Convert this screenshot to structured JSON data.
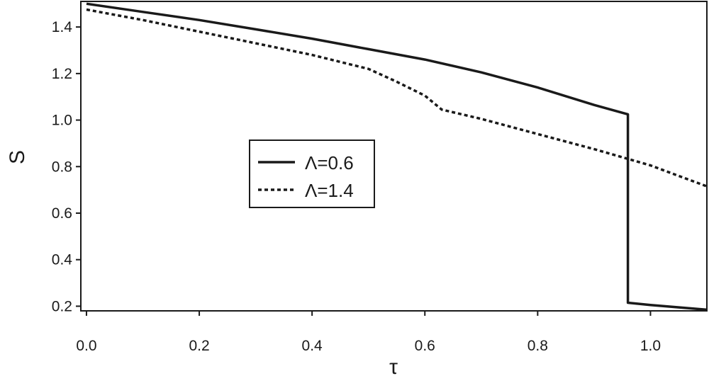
{
  "chart_data": {
    "type": "line",
    "xlabel": "τ",
    "ylabel": "S",
    "xlim": [
      -0.01,
      1.1
    ],
    "ylim": [
      0.18,
      1.51
    ],
    "xticks": [
      "0.0",
      "0.2",
      "0.4",
      "0.6",
      "0.8",
      "1.0"
    ],
    "yticks": [
      "0.2",
      "0.4",
      "0.6",
      "0.8",
      "1.0",
      "1.2",
      "1.4"
    ],
    "grid": false,
    "legend_position": "center-left",
    "series": [
      {
        "name": "Λ=0.6",
        "style": "solid",
        "x": [
          0.0,
          0.1,
          0.2,
          0.3,
          0.4,
          0.5,
          0.6,
          0.7,
          0.8,
          0.9,
          0.96,
          0.96,
          1.0,
          1.1
        ],
        "y": [
          1.5,
          1.465,
          1.43,
          1.39,
          1.35,
          1.305,
          1.26,
          1.205,
          1.14,
          1.065,
          1.025,
          0.215,
          0.205,
          0.185
        ]
      },
      {
        "name": "Λ=1.4",
        "style": "dotted",
        "x": [
          0.0,
          0.1,
          0.2,
          0.3,
          0.4,
          0.5,
          0.55,
          0.6,
          0.63,
          0.7,
          0.8,
          0.9,
          1.0,
          1.1
        ],
        "y": [
          1.475,
          1.43,
          1.38,
          1.33,
          1.28,
          1.22,
          1.165,
          1.105,
          1.045,
          1.005,
          0.94,
          0.875,
          0.805,
          0.715
        ]
      }
    ]
  }
}
